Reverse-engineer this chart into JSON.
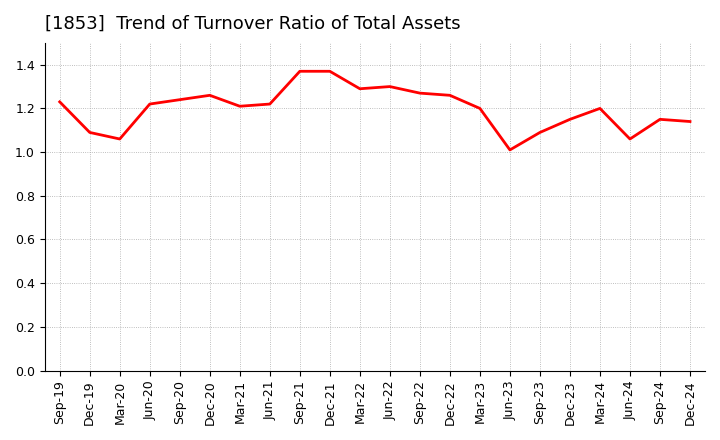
{
  "title": "[1853]  Trend of Turnover Ratio of Total Assets",
  "labels": [
    "Sep-19",
    "Dec-19",
    "Mar-20",
    "Jun-20",
    "Sep-20",
    "Dec-20",
    "Mar-21",
    "Jun-21",
    "Sep-21",
    "Dec-21",
    "Mar-22",
    "Jun-22",
    "Sep-22",
    "Dec-22",
    "Mar-23",
    "Jun-23",
    "Sep-23",
    "Dec-23",
    "Mar-24",
    "Jun-24",
    "Sep-24",
    "Dec-24"
  ],
  "values": [
    1.23,
    1.09,
    1.06,
    1.22,
    1.24,
    1.26,
    1.21,
    1.22,
    1.37,
    1.37,
    1.29,
    1.3,
    1.27,
    1.26,
    1.2,
    1.01,
    1.09,
    1.15,
    1.2,
    1.06,
    1.15,
    1.14
  ],
  "line_color": "#ff0000",
  "line_width": 2.0,
  "ylim": [
    0.0,
    1.5
  ],
  "yticks": [
    0.0,
    0.2,
    0.4,
    0.6,
    0.8,
    1.0,
    1.2,
    1.4
  ],
  "grid_color": "#aaaaaa",
  "grid_style": "dotted",
  "background_color": "#ffffff",
  "title_fontsize": 13,
  "tick_fontsize": 9
}
